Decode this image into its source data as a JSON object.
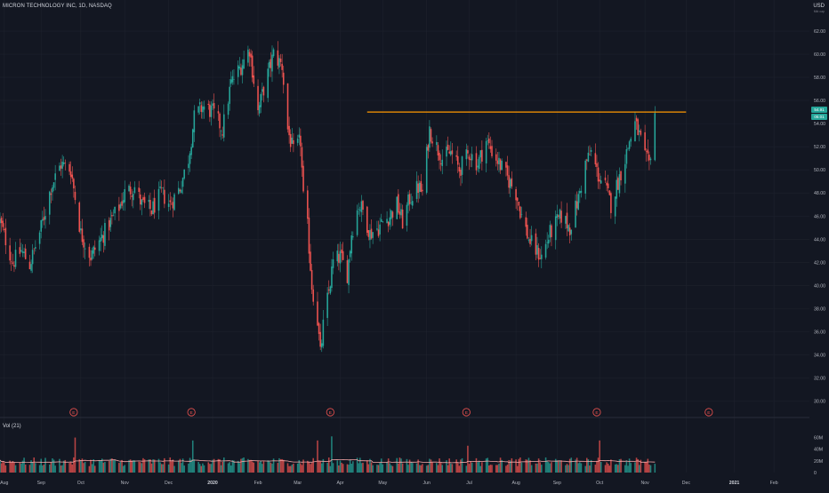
{
  "header": {
    "symbol": "MICRON TECHNOLOGY INC, 1D, NASDAQ",
    "currency": "USD",
    "currency_sub": "Mkt cap"
  },
  "price_tags": {
    "last": "54.91",
    "timer": "05:01"
  },
  "volume_panel": {
    "label": "Vol (21)"
  },
  "earnings_marker": "E",
  "colors": {
    "background": "#131722",
    "up": "#26a69a",
    "down": "#ef5350",
    "resistance_line": "#ff9800",
    "grid": "#1e222d",
    "axis_text": "#b2b5be",
    "volume_ma": "#f7a8a8"
  },
  "chart_data": [
    {
      "type": "candlestick",
      "title": "MICRON TECHNOLOGY INC, 1D, NASDAQ",
      "y_axis": {
        "position": "right",
        "range": [
          29.5,
          63
        ],
        "ticks": [
          30,
          32,
          34,
          36,
          38,
          40,
          42,
          44,
          46,
          48,
          50,
          52,
          54,
          56,
          58,
          60,
          62
        ],
        "tick_labels": [
          "30.00",
          "32.00",
          "34.00",
          "36.00",
          "38.00",
          "40.00",
          "42.00",
          "44.00",
          "46.00",
          "48.00",
          "50.00",
          "52.00",
          "54.00",
          "56.00",
          "58.00",
          "60.00",
          "62.00"
        ]
      },
      "x_axis": {
        "range": [
          "2019-08-05",
          "2021-02-26"
        ],
        "ticks": [
          "2019-08-08",
          "2019-09-03",
          "2019-10-01",
          "2019-11-01",
          "2019-12-02",
          "2020-01-02",
          "2020-02-03",
          "2020-03-02",
          "2020-04-01",
          "2020-05-01",
          "2020-06-01",
          "2020-07-01",
          "2020-08-03",
          "2020-09-01",
          "2020-10-01",
          "2020-11-02",
          "2020-12-01",
          "2021-01-04",
          "2021-02-01"
        ],
        "tick_labels": [
          "Aug",
          "Sep",
          "Oct",
          "Nov",
          "Dec",
          "2020",
          "Feb",
          "Mar",
          "Apr",
          "May",
          "Jun",
          "Jul",
          "Aug",
          "Sep",
          "Oct",
          "Nov",
          "Dec",
          "2021",
          "Feb"
        ]
      },
      "price_path": [
        [
          "2019-08-05",
          45.5
        ],
        [
          "2019-08-14",
          42.0
        ],
        [
          "2019-08-20",
          43.0
        ],
        [
          "2019-08-26",
          41.8
        ],
        [
          "2019-09-03",
          45.0
        ],
        [
          "2019-09-10",
          48.5
        ],
        [
          "2019-09-17",
          50.5
        ],
        [
          "2019-09-24",
          50.0
        ],
        [
          "2019-10-01",
          44.5
        ],
        [
          "2019-10-08",
          42.5
        ],
        [
          "2019-10-15",
          44.0
        ],
        [
          "2019-10-22",
          45.5
        ],
        [
          "2019-10-29",
          47.0
        ],
        [
          "2019-11-01",
          48.0
        ],
        [
          "2019-11-08",
          48.5
        ],
        [
          "2019-11-13",
          47.0
        ],
        [
          "2019-11-20",
          46.5
        ],
        [
          "2019-11-27",
          48.0
        ],
        [
          "2019-12-03",
          47.0
        ],
        [
          "2019-12-10",
          48.5
        ],
        [
          "2019-12-16",
          51.0
        ],
        [
          "2019-12-20",
          54.5
        ],
        [
          "2019-12-26",
          55.5
        ],
        [
          "2020-01-02",
          55.0
        ],
        [
          "2020-01-09",
          53.5
        ],
        [
          "2020-01-15",
          57.5
        ],
        [
          "2020-01-22",
          59.0
        ],
        [
          "2020-01-28",
          60.5
        ],
        [
          "2020-02-03",
          55.0
        ],
        [
          "2020-02-07",
          57.0
        ],
        [
          "2020-02-14",
          60.0
        ],
        [
          "2020-02-20",
          59.0
        ],
        [
          "2020-02-24",
          53.5
        ],
        [
          "2020-02-28",
          51.5
        ],
        [
          "2020-03-04",
          52.5
        ],
        [
          "2020-03-06",
          47.5
        ],
        [
          "2020-03-09",
          45.0
        ],
        [
          "2020-03-12",
          40.0
        ],
        [
          "2020-03-16",
          37.0
        ],
        [
          "2020-03-18",
          34.0
        ],
        [
          "2020-03-20",
          36.5
        ],
        [
          "2020-03-24",
          39.5
        ],
        [
          "2020-03-27",
          42.0
        ],
        [
          "2020-04-01",
          42.5
        ],
        [
          "2020-04-06",
          41.0
        ],
        [
          "2020-04-09",
          44.5
        ],
        [
          "2020-04-14",
          47.0
        ],
        [
          "2020-04-17",
          46.5
        ],
        [
          "2020-04-22",
          44.5
        ],
        [
          "2020-04-28",
          45.0
        ],
        [
          "2020-05-01",
          45.5
        ],
        [
          "2020-05-06",
          46.0
        ],
        [
          "2020-05-11",
          47.0
        ],
        [
          "2020-05-15",
          45.5
        ],
        [
          "2020-05-20",
          47.5
        ],
        [
          "2020-05-26",
          48.5
        ],
        [
          "2020-05-29",
          48.0
        ],
        [
          "2020-06-03",
          53.5
        ],
        [
          "2020-06-08",
          52.0
        ],
        [
          "2020-06-12",
          51.0
        ],
        [
          "2020-06-18",
          51.5
        ],
        [
          "2020-06-24",
          50.0
        ],
        [
          "2020-07-01",
          51.5
        ],
        [
          "2020-07-07",
          50.5
        ],
        [
          "2020-07-13",
          52.5
        ],
        [
          "2020-07-20",
          51.0
        ],
        [
          "2020-07-27",
          49.5
        ],
        [
          "2020-08-03",
          48.0
        ],
        [
          "2020-08-07",
          46.0
        ],
        [
          "2020-08-12",
          44.0
        ],
        [
          "2020-08-17",
          43.0
        ],
        [
          "2020-08-21",
          42.5
        ],
        [
          "2020-08-27",
          44.5
        ],
        [
          "2020-09-01",
          45.5
        ],
        [
          "2020-09-04",
          46.0
        ],
        [
          "2020-09-10",
          45.0
        ],
        [
          "2020-09-16",
          47.5
        ],
        [
          "2020-09-21",
          50.5
        ],
        [
          "2020-09-25",
          51.5
        ],
        [
          "2020-09-30",
          49.5
        ],
        [
          "2020-10-05",
          48.5
        ],
        [
          "2020-10-09",
          47.0
        ],
        [
          "2020-10-14",
          49.0
        ],
        [
          "2020-10-19",
          51.0
        ],
        [
          "2020-10-22",
          52.5
        ],
        [
          "2020-10-26",
          54.0
        ],
        [
          "2020-10-29",
          53.0
        ],
        [
          "2020-11-02",
          51.0
        ],
        [
          "2020-11-05",
          50.5
        ],
        [
          "2020-11-09",
          54.8
        ]
      ],
      "earnings_dates": [
        "2019-09-26",
        "2019-12-18",
        "2020-03-25",
        "2020-06-29",
        "2020-09-29",
        "2020-12-17"
      ],
      "horizontal_lines": [
        {
          "price": 55.0,
          "from": "2020-04-20",
          "to": "2020-12-01"
        }
      ],
      "last_price": 54.91,
      "grid": true
    },
    {
      "type": "bar",
      "title": "Vol (21)",
      "y_axis": {
        "position": "right",
        "range": [
          0,
          70000000
        ],
        "ticks": [
          0,
          20000000,
          40000000,
          60000000
        ],
        "tick_labels": [
          "0",
          "20M",
          "40M",
          "60M"
        ]
      },
      "typical_volume": 20000000,
      "spikes": [
        [
          "2019-09-27",
          60000000
        ],
        [
          "2019-12-19",
          55000000
        ],
        [
          "2020-03-16",
          55000000
        ],
        [
          "2020-03-26",
          62000000
        ],
        [
          "2020-06-30",
          46000000
        ],
        [
          "2020-10-01",
          55000000
        ]
      ],
      "moving_average_length": 21
    }
  ]
}
